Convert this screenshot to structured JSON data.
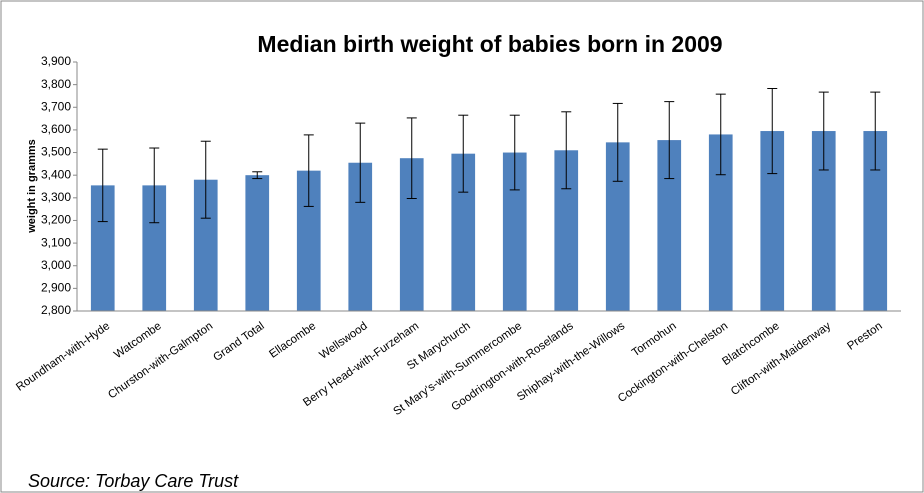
{
  "chart_data": {
    "type": "bar",
    "title": "Median birth weight of babies born in 2009",
    "y_label": "weight in gramms",
    "annotation": "Source: Torbay Care Trust",
    "categories": [
      "Roundham-with-Hyde",
      "Watcombe",
      "Churston-with-Galmpton",
      "Grand Total",
      "Ellacombe",
      "Wellswood",
      "Berry Head-with-Furzeham",
      "St Marychurch",
      "St Mary's-with-Summercombe",
      "Goodrington-with-Roselands",
      "Shiphay-with-the-Willows",
      "Tormohun",
      "Cockington-with-Chelston",
      "Blatchcombe",
      "Clifton-with-Maidenway",
      "Preston"
    ],
    "values": [
      3355,
      3355,
      3380,
      3400,
      3420,
      3455,
      3475,
      3495,
      3500,
      3510,
      3545,
      3555,
      3580,
      3595,
      3595,
      3595
    ],
    "errors": [
      160,
      165,
      170,
      15,
      158,
      175,
      178,
      170,
      165,
      170,
      172,
      170,
      178,
      188,
      172,
      172
    ],
    "color": "#4f81bd",
    "ylim": [
      2800,
      3900
    ],
    "yticks": [
      {
        "value": 2800,
        "label": "2,800"
      },
      {
        "value": 2900,
        "label": "2,900"
      },
      {
        "value": 3000,
        "label": "3,000"
      },
      {
        "value": 3100,
        "label": "3,100"
      },
      {
        "value": 3200,
        "label": "3,200"
      },
      {
        "value": 3300,
        "label": "3,300"
      },
      {
        "value": 3400,
        "label": "3,400"
      },
      {
        "value": 3500,
        "label": "3,500"
      },
      {
        "value": 3600,
        "label": "3,600"
      },
      {
        "value": 3700,
        "label": "3,700"
      },
      {
        "value": 3800,
        "label": "3,800"
      },
      {
        "value": 3900,
        "label": "3,900"
      }
    ],
    "grid": false
  }
}
